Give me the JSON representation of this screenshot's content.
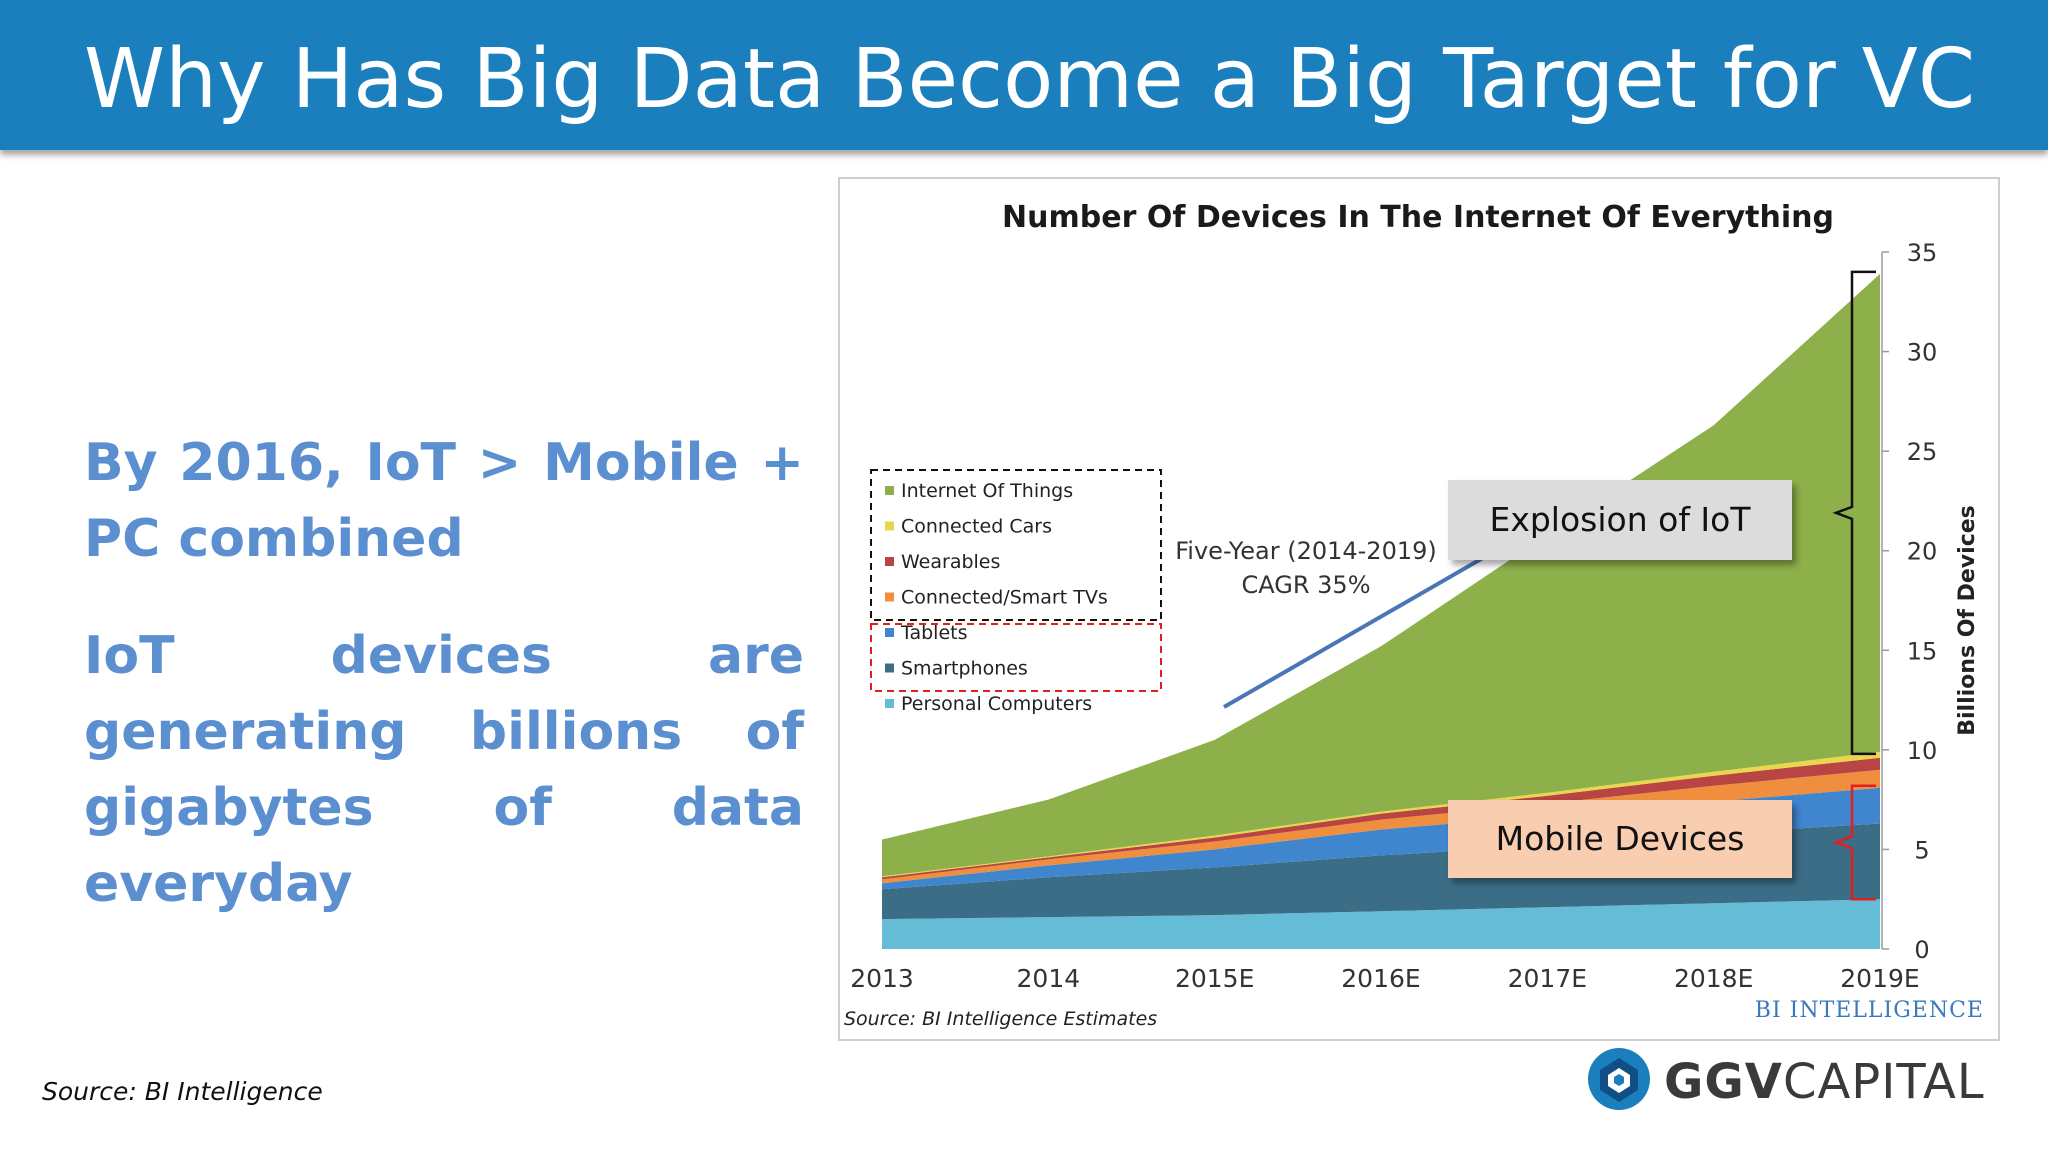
{
  "slide": {
    "title": "Why Has Big Data Become a Big Target for VC",
    "point1": "By 2016, IoT > Mobile + PC combined",
    "point2": "IoT devices are generating billions of gigabytes of data everyday",
    "source": "Source: BI Intelligence",
    "logo": {
      "bold": "GGV",
      "light": "CAPITAL"
    }
  },
  "callouts": {
    "iot": "Explosion of IoT",
    "mobile": "Mobile Devices"
  },
  "chart_data": {
    "type": "area",
    "stacked": true,
    "title": "Number Of Devices In The Internet Of Everything",
    "ylabel": "Billions Of Devices",
    "y_axis_position": "right",
    "ylim": [
      0,
      35
    ],
    "yticks": [
      0,
      5,
      10,
      15,
      20,
      25,
      30,
      35
    ],
    "categories": [
      "2013",
      "2014",
      "2015E",
      "2016E",
      "2017E",
      "2018E",
      "2019E"
    ],
    "series": [
      {
        "name": "Personal Computers",
        "color": "#64bcd6",
        "values": [
          1.5,
          1.6,
          1.7,
          1.9,
          2.1,
          2.3,
          2.5
        ]
      },
      {
        "name": "Smartphones",
        "color": "#3b6e86",
        "values": [
          1.5,
          2.0,
          2.4,
          2.8,
          3.1,
          3.5,
          3.8
        ]
      },
      {
        "name": "Tablets",
        "color": "#3f86cf",
        "values": [
          0.3,
          0.6,
          0.9,
          1.3,
          1.5,
          1.6,
          1.8
        ]
      },
      {
        "name": "Connected/Smart TVs",
        "color": "#f08e3f",
        "values": [
          0.2,
          0.3,
          0.4,
          0.5,
          0.6,
          0.8,
          0.9
        ]
      },
      {
        "name": "Wearables",
        "color": "#b84443",
        "values": [
          0.1,
          0.1,
          0.2,
          0.3,
          0.4,
          0.5,
          0.6
        ]
      },
      {
        "name": "Connected Cars",
        "color": "#e8d64f",
        "values": [
          0.05,
          0.05,
          0.1,
          0.1,
          0.15,
          0.2,
          0.3
        ]
      },
      {
        "name": "Internet Of Things",
        "color": "#8db04a",
        "values": [
          1.85,
          2.85,
          4.8,
          8.3,
          12.95,
          17.4,
          24.0
        ]
      }
    ],
    "legend_position": "left",
    "annotation": {
      "line1": "Five-Year (2014-2019)",
      "line2": "CAGR 35%"
    },
    "source": "Source: BI Intelligence Estimates",
    "brand": "BI INTELLIGENCE",
    "grid": false
  }
}
